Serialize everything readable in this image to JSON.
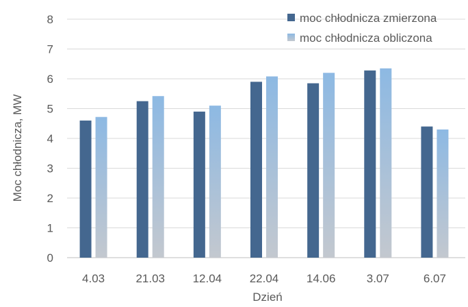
{
  "chart_data": {
    "type": "bar",
    "categories": [
      "4.03",
      "21.03",
      "12.04",
      "22.04",
      "14.06",
      "3.07",
      "6.07"
    ],
    "series": [
      {
        "name": "moc chłodnicza zmierzona",
        "values": [
          4.6,
          5.25,
          4.9,
          5.9,
          5.85,
          6.28,
          4.4
        ],
        "color": "#44678f"
      },
      {
        "name": "moc chłodnicza obliczona",
        "values": [
          4.72,
          5.42,
          5.1,
          6.08,
          6.2,
          6.35,
          4.3
        ],
        "color": "#8db9e3"
      }
    ],
    "xlabel": "Dzień",
    "ylabel": "Moc chłodnicza, MW",
    "ylim": [
      0,
      8
    ],
    "yticks": [
      0,
      1,
      2,
      3,
      4,
      5,
      6,
      7,
      8
    ],
    "grid": true,
    "legend_position": "top-right"
  }
}
